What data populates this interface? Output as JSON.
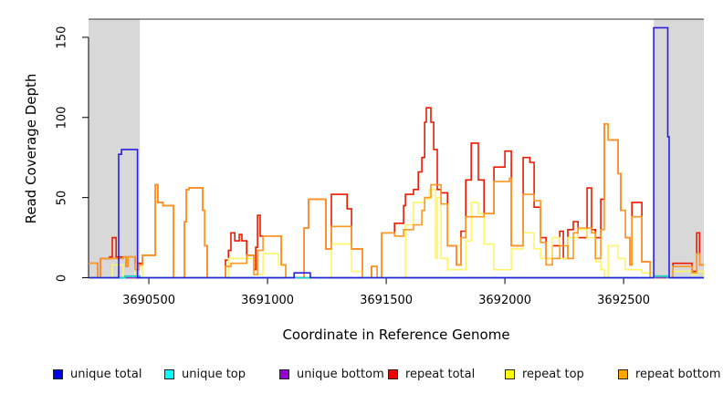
{
  "chart_data": {
    "type": "line",
    "subtype": "step-coverage",
    "title": "",
    "xlabel": "Coordinate in Reference Genome",
    "ylabel": "Read Coverage Depth",
    "xlim": [
      3690246,
      3692838
    ],
    "ylim": [
      0,
      161
    ],
    "x_ticks": [
      3690500,
      3691000,
      3691500,
      3692000,
      3692500
    ],
    "x_tick_labels": [
      "3690500",
      "3691000",
      "3691500",
      "3692000",
      "3692500"
    ],
    "y_ticks": [
      0,
      50,
      100,
      150
    ],
    "y_tick_labels": [
      "0",
      "50",
      "100",
      "150"
    ],
    "grid": false,
    "legend_position": "bottom",
    "shade_color": "#d8d8d8",
    "shaded_regions": [
      {
        "x0": 3690246,
        "x1": 3690462
      },
      {
        "x0": 3692627,
        "x1": 3692838
      }
    ],
    "legend": [
      {
        "label": "unique total",
        "color": "#0000EE"
      },
      {
        "label": "unique top",
        "color": "#00FFFF"
      },
      {
        "label": "unique bottom",
        "color": "#9400D3"
      },
      {
        "label": "repeat total",
        "color": "#EE0000"
      },
      {
        "label": "repeat top",
        "color": "#FFFF00"
      },
      {
        "label": "repeat bottom",
        "color": "#FFA500"
      }
    ],
    "series": [
      {
        "name": "repeat-total",
        "label": "repeat total",
        "color": "#F01800",
        "points": [
          [
            3690246,
            9
          ],
          [
            3690285,
            0
          ],
          [
            3690296,
            12
          ],
          [
            3690335,
            13
          ],
          [
            3690346,
            25
          ],
          [
            3690362,
            13
          ],
          [
            3690392,
            13
          ],
          [
            3690404,
            7
          ],
          [
            3690412,
            13
          ],
          [
            3690442,
            8
          ],
          [
            3690458,
            9
          ],
          [
            3690473,
            14
          ],
          [
            3690527,
            58
          ],
          [
            3690538,
            47
          ],
          [
            3690560,
            45
          ],
          [
            3690604,
            0
          ],
          [
            3690650,
            35
          ],
          [
            3690658,
            55
          ],
          [
            3690669,
            56
          ],
          [
            3690727,
            42
          ],
          [
            3690735,
            20
          ],
          [
            3690746,
            0
          ],
          [
            3690823,
            11
          ],
          [
            3690835,
            17
          ],
          [
            3690846,
            28
          ],
          [
            3690862,
            23
          ],
          [
            3690881,
            27
          ],
          [
            3690892,
            23
          ],
          [
            3690912,
            14
          ],
          [
            3690942,
            5
          ],
          [
            3690950,
            19
          ],
          [
            3690958,
            39
          ],
          [
            3690969,
            26
          ],
          [
            3691046,
            26
          ],
          [
            3691058,
            8
          ],
          [
            3691077,
            0
          ],
          [
            3691154,
            31
          ],
          [
            3691173,
            49
          ],
          [
            3691246,
            18
          ],
          [
            3691269,
            52
          ],
          [
            3691335,
            43
          ],
          [
            3691354,
            18
          ],
          [
            3691400,
            0
          ],
          [
            3691438,
            7
          ],
          [
            3691462,
            0
          ],
          [
            3691481,
            28
          ],
          [
            3691535,
            34
          ],
          [
            3691573,
            45
          ],
          [
            3691581,
            52
          ],
          [
            3691615,
            55
          ],
          [
            3691635,
            66
          ],
          [
            3691650,
            75
          ],
          [
            3691662,
            97
          ],
          [
            3691669,
            106
          ],
          [
            3691688,
            97
          ],
          [
            3691700,
            80
          ],
          [
            3691715,
            55
          ],
          [
            3691731,
            53
          ],
          [
            3691758,
            20
          ],
          [
            3691796,
            8
          ],
          [
            3691815,
            29
          ],
          [
            3691835,
            61
          ],
          [
            3691858,
            84
          ],
          [
            3691888,
            61
          ],
          [
            3691912,
            40
          ],
          [
            3691954,
            69
          ],
          [
            3692000,
            79
          ],
          [
            3692027,
            20
          ],
          [
            3692077,
            75
          ],
          [
            3692105,
            72
          ],
          [
            3692123,
            44
          ],
          [
            3692150,
            25
          ],
          [
            3692173,
            12
          ],
          [
            3692200,
            20
          ],
          [
            3692231,
            29
          ],
          [
            3692246,
            12
          ],
          [
            3692265,
            30
          ],
          [
            3692288,
            35
          ],
          [
            3692308,
            25
          ],
          [
            3692346,
            56
          ],
          [
            3692365,
            30
          ],
          [
            3692381,
            25
          ],
          [
            3692404,
            49
          ],
          [
            3692419,
            96
          ],
          [
            3692435,
            86
          ],
          [
            3692477,
            65
          ],
          [
            3692488,
            42
          ],
          [
            3692508,
            25
          ],
          [
            3692527,
            8
          ],
          [
            3692535,
            47
          ],
          [
            3692577,
            10
          ],
          [
            3692612,
            0
          ],
          [
            3692708,
            9
          ],
          [
            3692788,
            4
          ],
          [
            3692808,
            28
          ],
          [
            3692820,
            8
          ],
          [
            3692838,
            8
          ]
        ]
      },
      {
        "name": "repeat-top",
        "label": "repeat top",
        "color": "#FFF566",
        "points": [
          [
            3690246,
            0
          ],
          [
            3690346,
            8
          ],
          [
            3690392,
            0
          ],
          [
            3690442,
            8
          ],
          [
            3690473,
            0
          ],
          [
            3690835,
            12
          ],
          [
            3690942,
            2
          ],
          [
            3690981,
            15
          ],
          [
            3691046,
            8
          ],
          [
            3691077,
            0
          ],
          [
            3691269,
            21
          ],
          [
            3691354,
            4
          ],
          [
            3691400,
            0
          ],
          [
            3691581,
            33
          ],
          [
            3691615,
            47
          ],
          [
            3691662,
            49
          ],
          [
            3691681,
            55
          ],
          [
            3691708,
            12
          ],
          [
            3691715,
            50
          ],
          [
            3691731,
            12
          ],
          [
            3691758,
            5
          ],
          [
            3691835,
            23
          ],
          [
            3691858,
            47
          ],
          [
            3691888,
            40
          ],
          [
            3691912,
            21
          ],
          [
            3691954,
            5
          ],
          [
            3692027,
            18
          ],
          [
            3692077,
            28
          ],
          [
            3692123,
            18
          ],
          [
            3692150,
            12
          ],
          [
            3692200,
            25
          ],
          [
            3692231,
            12
          ],
          [
            3692265,
            25
          ],
          [
            3692308,
            30
          ],
          [
            3692346,
            25
          ],
          [
            3692381,
            10
          ],
          [
            3692404,
            5
          ],
          [
            3692419,
            0
          ],
          [
            3692435,
            20
          ],
          [
            3692477,
            12
          ],
          [
            3692508,
            5
          ],
          [
            3692535,
            5
          ],
          [
            3692577,
            3
          ],
          [
            3692612,
            0
          ],
          [
            3692708,
            4
          ],
          [
            3692788,
            2
          ],
          [
            3692808,
            4
          ],
          [
            3692838,
            0
          ]
        ]
      },
      {
        "name": "repeat-bottom",
        "label": "repeat bottom",
        "color": "#FF9822",
        "points": [
          [
            3690246,
            9
          ],
          [
            3690285,
            0
          ],
          [
            3690296,
            12
          ],
          [
            3690392,
            13
          ],
          [
            3690404,
            7
          ],
          [
            3690412,
            13
          ],
          [
            3690442,
            5
          ],
          [
            3690458,
            8
          ],
          [
            3690473,
            14
          ],
          [
            3690527,
            58
          ],
          [
            3690538,
            47
          ],
          [
            3690560,
            45
          ],
          [
            3690604,
            0
          ],
          [
            3690650,
            35
          ],
          [
            3690658,
            55
          ],
          [
            3690669,
            56
          ],
          [
            3690727,
            42
          ],
          [
            3690735,
            20
          ],
          [
            3690746,
            0
          ],
          [
            3690823,
            7
          ],
          [
            3690846,
            9
          ],
          [
            3690912,
            14
          ],
          [
            3690942,
            2
          ],
          [
            3690958,
            17
          ],
          [
            3690981,
            26
          ],
          [
            3691046,
            26
          ],
          [
            3691058,
            8
          ],
          [
            3691077,
            0
          ],
          [
            3691154,
            31
          ],
          [
            3691173,
            49
          ],
          [
            3691246,
            18
          ],
          [
            3691269,
            32
          ],
          [
            3691335,
            32
          ],
          [
            3691354,
            18
          ],
          [
            3691400,
            0
          ],
          [
            3691438,
            7
          ],
          [
            3691462,
            0
          ],
          [
            3691481,
            28
          ],
          [
            3691535,
            26
          ],
          [
            3691573,
            30
          ],
          [
            3691615,
            33
          ],
          [
            3691650,
            42
          ],
          [
            3691662,
            50
          ],
          [
            3691688,
            58
          ],
          [
            3691731,
            46
          ],
          [
            3691758,
            20
          ],
          [
            3691796,
            8
          ],
          [
            3691815,
            25
          ],
          [
            3691835,
            38
          ],
          [
            3691912,
            40
          ],
          [
            3691954,
            60
          ],
          [
            3692019,
            62
          ],
          [
            3692027,
            20
          ],
          [
            3692077,
            52
          ],
          [
            3692123,
            48
          ],
          [
            3692150,
            22
          ],
          [
            3692173,
            8
          ],
          [
            3692200,
            12
          ],
          [
            3692231,
            20
          ],
          [
            3692265,
            12
          ],
          [
            3692288,
            28
          ],
          [
            3692308,
            31
          ],
          [
            3692365,
            28
          ],
          [
            3692381,
            12
          ],
          [
            3692404,
            30
          ],
          [
            3692419,
            96
          ],
          [
            3692435,
            86
          ],
          [
            3692477,
            65
          ],
          [
            3692488,
            42
          ],
          [
            3692508,
            25
          ],
          [
            3692527,
            8
          ],
          [
            3692535,
            38
          ],
          [
            3692577,
            10
          ],
          [
            3692612,
            0
          ],
          [
            3692708,
            7
          ],
          [
            3692788,
            3
          ],
          [
            3692808,
            15
          ],
          [
            3692820,
            8
          ],
          [
            3692838,
            8
          ]
        ]
      },
      {
        "name": "unique-bottom",
        "label": "unique bottom",
        "color": "#8040CC",
        "points": [
          [
            3690246,
            0
          ],
          [
            3692838,
            0
          ]
        ]
      },
      {
        "name": "unique-top",
        "label": "unique top",
        "color": "#00DDCC",
        "points": [
          [
            3690246,
            0
          ],
          [
            3690400,
            1
          ],
          [
            3690462,
            0
          ],
          [
            3692630,
            1
          ],
          [
            3692685,
            0
          ],
          [
            3692838,
            0
          ]
        ]
      },
      {
        "name": "unique-total",
        "label": "unique total",
        "color": "#2A1FE0",
        "points": [
          [
            3690246,
            0
          ],
          [
            3690373,
            77
          ],
          [
            3690385,
            80
          ],
          [
            3690452,
            0
          ],
          [
            3691112,
            3
          ],
          [
            3691180,
            0
          ],
          [
            3692627,
            156
          ],
          [
            3692686,
            88
          ],
          [
            3692692,
            0
          ],
          [
            3692838,
            0
          ]
        ]
      }
    ]
  }
}
